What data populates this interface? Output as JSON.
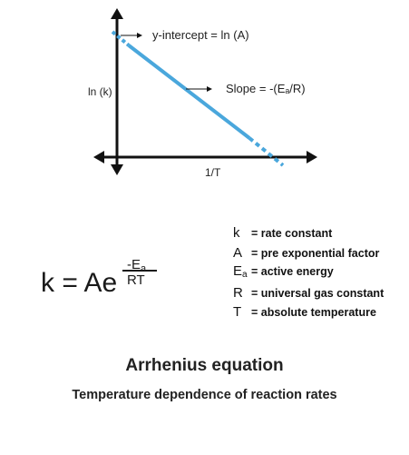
{
  "graph": {
    "x_axis_label": "1/T",
    "y_axis_label": "ln (k)",
    "intercept_annotation": "y-intercept = ln (A)",
    "slope_annotation": "Slope = -(Eₐ/R)",
    "line_color": "#4aa7dc"
  },
  "formula": {
    "lhs": "k = Ae",
    "exp_numerator": "-E",
    "exp_numerator_sub": "a",
    "exp_denominator": "RT"
  },
  "legend": [
    {
      "symbol": "k",
      "symbol_sub": "",
      "definition": "= rate constant"
    },
    {
      "symbol": "A",
      "symbol_sub": "",
      "definition": "= pre exponential factor"
    },
    {
      "symbol": "E",
      "symbol_sub": "a",
      "definition": "= active energy"
    },
    {
      "symbol": "R",
      "symbol_sub": "",
      "definition": "= universal gas constant"
    },
    {
      "symbol": "T",
      "symbol_sub": "",
      "definition": "= absolute temperature"
    }
  ],
  "title": "Arrhenius equation",
  "subtitle": "Temperature dependence of reaction rates"
}
